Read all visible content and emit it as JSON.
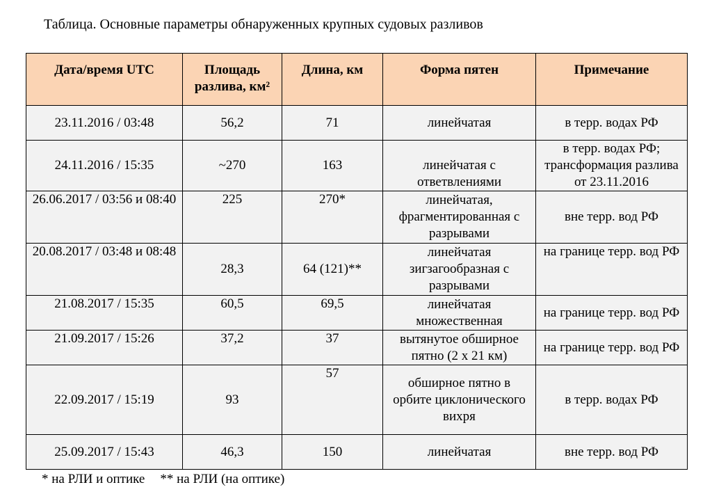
{
  "title": "Таблица. Основные параметры обнаруженных крупных судовых разливов",
  "table": {
    "header": [
      "Дата/время UTC",
      "Площадь разлива, км²",
      "Длина, км",
      "Форма пятен",
      "Примечание"
    ],
    "rows": [
      [
        "23.11.2016 / 03:48",
        "56,2",
        "71",
        "линейчатая",
        "в терр. водах РФ"
      ],
      [
        "24.11.2016 / 15:35",
        "~270",
        "163",
        "линейчатая с ответвлениями",
        "в терр. водах РФ; трансформация разлива от 23.11.2016"
      ],
      [
        "26.06.2017 / 03:56 и 08:40",
        "225",
        "270*",
        "линейчатая, фрагментированная с разрывами",
        "вне терр. вод РФ"
      ],
      [
        "20.08.2017 / 03:48 и 08:48",
        "28,3",
        "64 (121)**",
        "линейчатая зигзагообразная с разрывами",
        "на границе терр. вод РФ"
      ],
      [
        "21.08.2017 / 15:35",
        "60,5",
        "69,5",
        "линейчатая множественная",
        "на границе терр. вод РФ"
      ],
      [
        "21.09.2017 / 15:26",
        "37,2",
        "37",
        "вытянутое обширное пятно (2 х 21 км)",
        "на границе терр. вод РФ"
      ],
      [
        "22.09.2017 / 15:19",
        "93",
        "57",
        "обширное пятно в орбите циклонического вихря",
        "в терр. водах РФ"
      ],
      [
        "25.09.2017 / 15:43",
        "46,3",
        "150",
        "линейчатая",
        "вне терр. вод РФ"
      ]
    ]
  },
  "footnotes": [
    "* на РЛИ и оптике",
    "** на РЛИ (на оптике)"
  ]
}
